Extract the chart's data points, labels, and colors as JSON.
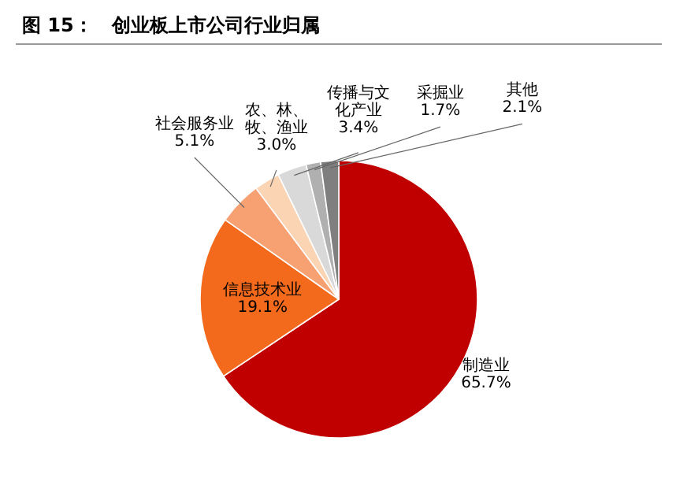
{
  "chart_data": {
    "type": "pie",
    "title": "图 15：　创业板上市公司行业归属",
    "categories": [
      "制造业",
      "信息技术业",
      "社会服务业",
      "农、林、牧、渔业",
      "传播与文化产业",
      "采掘业",
      "其他"
    ],
    "values": [
      65.7,
      19.1,
      5.1,
      3.0,
      3.4,
      1.7,
      2.1
    ],
    "value_labels": [
      "65.7%",
      "19.1%",
      "5.1%",
      "3.0%",
      "3.4%",
      "1.7%",
      "2.1%"
    ],
    "colors": [
      "#c00000",
      "#f46a1c",
      "#f7a072",
      "#fbd4b4",
      "#d9d9d9",
      "#b0b0b0",
      "#7f7f7f"
    ]
  }
}
